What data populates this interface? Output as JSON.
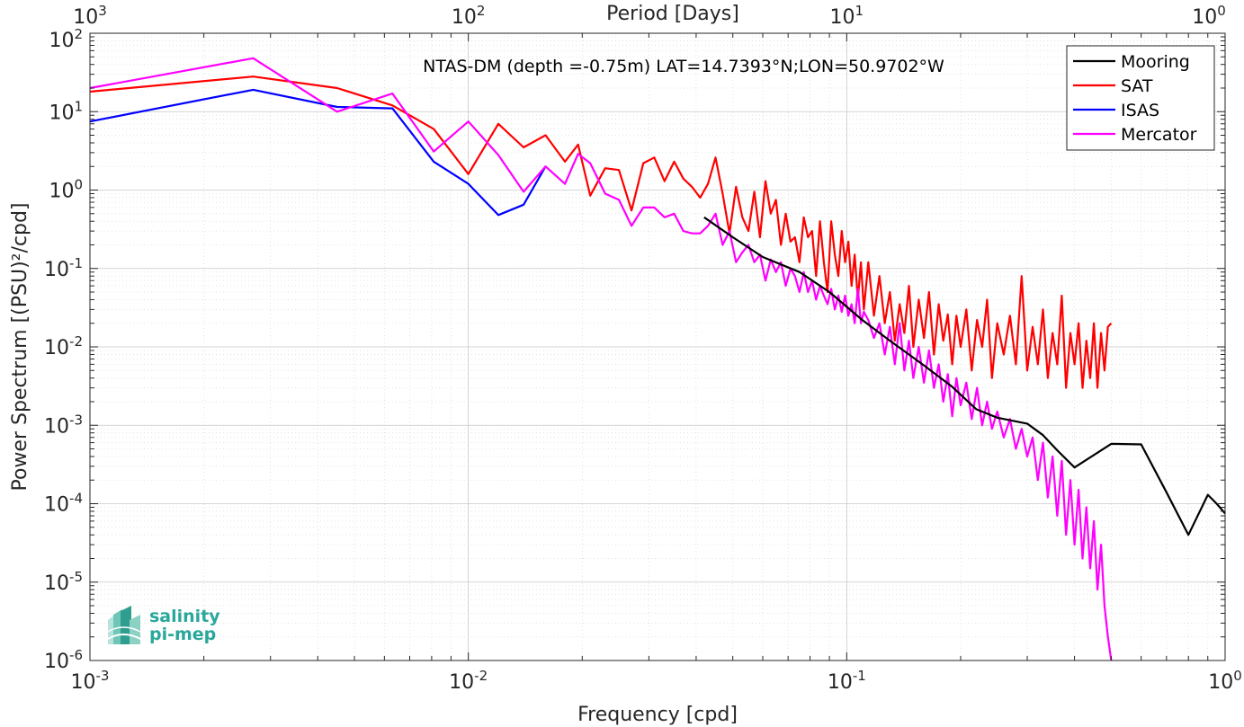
{
  "chart_data": {
    "type": "line",
    "title": "NTAS-DM (depth =-0.75m) LAT=14.7393°N;LON=50.9702°W",
    "xlabel": "Frequency [cpd]",
    "ylabel": "Power Spectrum [(PSU)²/cpd]",
    "x2label": "Period [Days]",
    "xscale": "log",
    "yscale": "log",
    "xlim": [
      0.001,
      1
    ],
    "ylim": [
      1e-06,
      100
    ],
    "grid": true,
    "legend_position": "top-right",
    "x_ticks": [
      {
        "value": 0.001,
        "base": "10",
        "exp": "-3"
      },
      {
        "value": 0.01,
        "base": "10",
        "exp": "-2"
      },
      {
        "value": 0.1,
        "base": "10",
        "exp": "-1"
      },
      {
        "value": 1,
        "base": "10",
        "exp": "0"
      }
    ],
    "x2_ticks": [
      {
        "value": 0.001,
        "base": "10",
        "exp": "3"
      },
      {
        "value": 0.01,
        "base": "10",
        "exp": "2"
      },
      {
        "value": 0.1,
        "base": "10",
        "exp": "1"
      },
      {
        "value": 1,
        "base": "10",
        "exp": "0"
      }
    ],
    "y_ticks": [
      {
        "value": 1e-06,
        "base": "10",
        "exp": "-6"
      },
      {
        "value": 1e-05,
        "base": "10",
        "exp": "-5"
      },
      {
        "value": 0.0001,
        "base": "10",
        "exp": "-4"
      },
      {
        "value": 0.001,
        "base": "10",
        "exp": "-3"
      },
      {
        "value": 0.01,
        "base": "10",
        "exp": "-2"
      },
      {
        "value": 0.1,
        "base": "10",
        "exp": "-1"
      },
      {
        "value": 1,
        "base": "10",
        "exp": "0"
      },
      {
        "value": 10,
        "base": "10",
        "exp": "1"
      },
      {
        "value": 100,
        "base": "10",
        "exp": "2"
      }
    ],
    "series": [
      {
        "name": "Mooring",
        "color": "#000000",
        "x": [
          0.042,
          0.05,
          0.06,
          0.075,
          0.09,
          0.11,
          0.13,
          0.16,
          0.19,
          0.22,
          0.25,
          0.3,
          0.33,
          0.36,
          0.4,
          0.5,
          0.6,
          0.7,
          0.8,
          0.9,
          0.95,
          1.0
        ],
        "y": [
          0.45,
          0.25,
          0.14,
          0.09,
          0.05,
          0.022,
          0.012,
          0.0058,
          0.0031,
          0.0016,
          0.00125,
          0.00105,
          0.00075,
          0.00048,
          0.00029,
          0.00058,
          0.00057,
          0.00014,
          4e-05,
          0.00013,
          0.0001,
          7.5e-05
        ]
      },
      {
        "name": "SAT",
        "color": "#ff0000",
        "x": [
          0.001,
          0.0027,
          0.0045,
          0.0063,
          0.0081,
          0.01,
          0.012,
          0.014,
          0.016,
          0.018,
          0.0195,
          0.021,
          0.023,
          0.025,
          0.027,
          0.029,
          0.031,
          0.033,
          0.035,
          0.037,
          0.039,
          0.041,
          0.043,
          0.045,
          0.047,
          0.049,
          0.051,
          0.053,
          0.055,
          0.057,
          0.059,
          0.061,
          0.063,
          0.065,
          0.067,
          0.069,
          0.071,
          0.073,
          0.075,
          0.077,
          0.079,
          0.081,
          0.083,
          0.085,
          0.087,
          0.089,
          0.091,
          0.093,
          0.095,
          0.097,
          0.099,
          0.101,
          0.103,
          0.105,
          0.107,
          0.109,
          0.111,
          0.114,
          0.118,
          0.122,
          0.126,
          0.13,
          0.134,
          0.138,
          0.142,
          0.146,
          0.15,
          0.155,
          0.16,
          0.165,
          0.17,
          0.175,
          0.18,
          0.185,
          0.19,
          0.195,
          0.2,
          0.207,
          0.214,
          0.221,
          0.228,
          0.235,
          0.242,
          0.25,
          0.26,
          0.27,
          0.28,
          0.29,
          0.3,
          0.31,
          0.32,
          0.33,
          0.34,
          0.35,
          0.36,
          0.37,
          0.38,
          0.39,
          0.4,
          0.41,
          0.42,
          0.43,
          0.44,
          0.45,
          0.46,
          0.47,
          0.48,
          0.49,
          0.5
        ],
        "y": [
          18,
          28,
          20,
          12,
          6,
          1.6,
          7,
          3.5,
          5,
          2.3,
          3.8,
          0.85,
          1.9,
          1.8,
          0.55,
          2.2,
          2.6,
          1.3,
          2.3,
          1.4,
          1.1,
          0.8,
          1.2,
          2.6,
          0.9,
          0.28,
          1.1,
          0.45,
          0.3,
          0.95,
          0.25,
          1.3,
          0.5,
          0.75,
          0.2,
          0.5,
          0.22,
          0.25,
          0.12,
          0.45,
          0.25,
          0.3,
          0.08,
          0.4,
          0.12,
          0.05,
          0.4,
          0.15,
          0.08,
          0.3,
          0.12,
          0.22,
          0.06,
          0.15,
          0.04,
          0.12,
          0.03,
          0.12,
          0.025,
          0.08,
          0.02,
          0.05,
          0.012,
          0.035,
          0.015,
          0.06,
          0.01,
          0.04,
          0.013,
          0.05,
          0.008,
          0.035,
          0.012,
          0.026,
          0.006,
          0.025,
          0.01,
          0.03,
          0.005,
          0.022,
          0.01,
          0.04,
          0.004,
          0.02,
          0.008,
          0.025,
          0.006,
          0.08,
          0.005,
          0.018,
          0.006,
          0.03,
          0.004,
          0.015,
          0.006,
          0.045,
          0.003,
          0.015,
          0.006,
          0.02,
          0.003,
          0.012,
          0.004,
          0.02,
          0.003,
          0.015,
          0.005,
          0.018,
          0.02
        ]
      },
      {
        "name": "ISAS",
        "color": "#0000ff",
        "x": [
          0.001,
          0.0027,
          0.0045,
          0.0063,
          0.0081,
          0.01,
          0.012,
          0.014,
          0.016
        ],
        "y": [
          7.5,
          19,
          11.5,
          11,
          2.3,
          1.2,
          0.48,
          0.65,
          2.0
        ]
      },
      {
        "name": "Mercator",
        "color": "#ff00ff",
        "x": [
          0.001,
          0.0027,
          0.0045,
          0.0063,
          0.0081,
          0.01,
          0.012,
          0.014,
          0.016,
          0.018,
          0.0195,
          0.021,
          0.023,
          0.025,
          0.027,
          0.029,
          0.031,
          0.033,
          0.035,
          0.037,
          0.039,
          0.041,
          0.043,
          0.045,
          0.047,
          0.049,
          0.051,
          0.053,
          0.055,
          0.057,
          0.059,
          0.061,
          0.063,
          0.065,
          0.067,
          0.069,
          0.071,
          0.073,
          0.075,
          0.077,
          0.079,
          0.081,
          0.083,
          0.085,
          0.087,
          0.089,
          0.091,
          0.093,
          0.095,
          0.097,
          0.099,
          0.101,
          0.103,
          0.105,
          0.107,
          0.109,
          0.111,
          0.114,
          0.118,
          0.122,
          0.126,
          0.13,
          0.134,
          0.138,
          0.142,
          0.146,
          0.15,
          0.155,
          0.16,
          0.165,
          0.17,
          0.175,
          0.18,
          0.185,
          0.19,
          0.195,
          0.2,
          0.207,
          0.214,
          0.221,
          0.228,
          0.235,
          0.242,
          0.25,
          0.26,
          0.27,
          0.28,
          0.29,
          0.3,
          0.31,
          0.32,
          0.33,
          0.34,
          0.35,
          0.36,
          0.37,
          0.38,
          0.39,
          0.4,
          0.41,
          0.42,
          0.43,
          0.44,
          0.45,
          0.46,
          0.47,
          0.48,
          0.49,
          0.5
        ],
        "y": [
          20,
          48,
          10,
          17,
          3.1,
          7.5,
          2.8,
          0.95,
          2.0,
          1.2,
          2.9,
          2.2,
          0.9,
          0.75,
          0.35,
          0.6,
          0.6,
          0.45,
          0.5,
          0.3,
          0.28,
          0.28,
          0.35,
          0.5,
          0.2,
          0.3,
          0.12,
          0.16,
          0.2,
          0.12,
          0.15,
          0.07,
          0.13,
          0.09,
          0.12,
          0.06,
          0.1,
          0.08,
          0.05,
          0.09,
          0.05,
          0.07,
          0.04,
          0.06,
          0.045,
          0.035,
          0.055,
          0.03,
          0.045,
          0.028,
          0.045,
          0.025,
          0.035,
          0.02,
          0.055,
          0.02,
          0.028,
          0.022,
          0.013,
          0.02,
          0.008,
          0.018,
          0.006,
          0.02,
          0.005,
          0.012,
          0.004,
          0.01,
          0.0035,
          0.009,
          0.003,
          0.006,
          0.002,
          0.0045,
          0.0013,
          0.004,
          0.0018,
          0.0035,
          0.0012,
          0.003,
          0.001,
          0.002,
          0.0009,
          0.0015,
          0.0007,
          0.0012,
          0.0005,
          0.0009,
          0.0004,
          0.0007,
          0.0002,
          0.0006,
          0.00012,
          0.0004,
          7e-05,
          0.00035,
          4e-05,
          0.0002,
          3e-05,
          0.00015,
          2e-05,
          9e-05,
          1.5e-05,
          6e-05,
          8e-06,
          3e-05,
          5e-06,
          2e-06,
          8e-07
        ]
      }
    ]
  },
  "logo": {
    "line1": "salinity",
    "line2": "pi-mep"
  }
}
